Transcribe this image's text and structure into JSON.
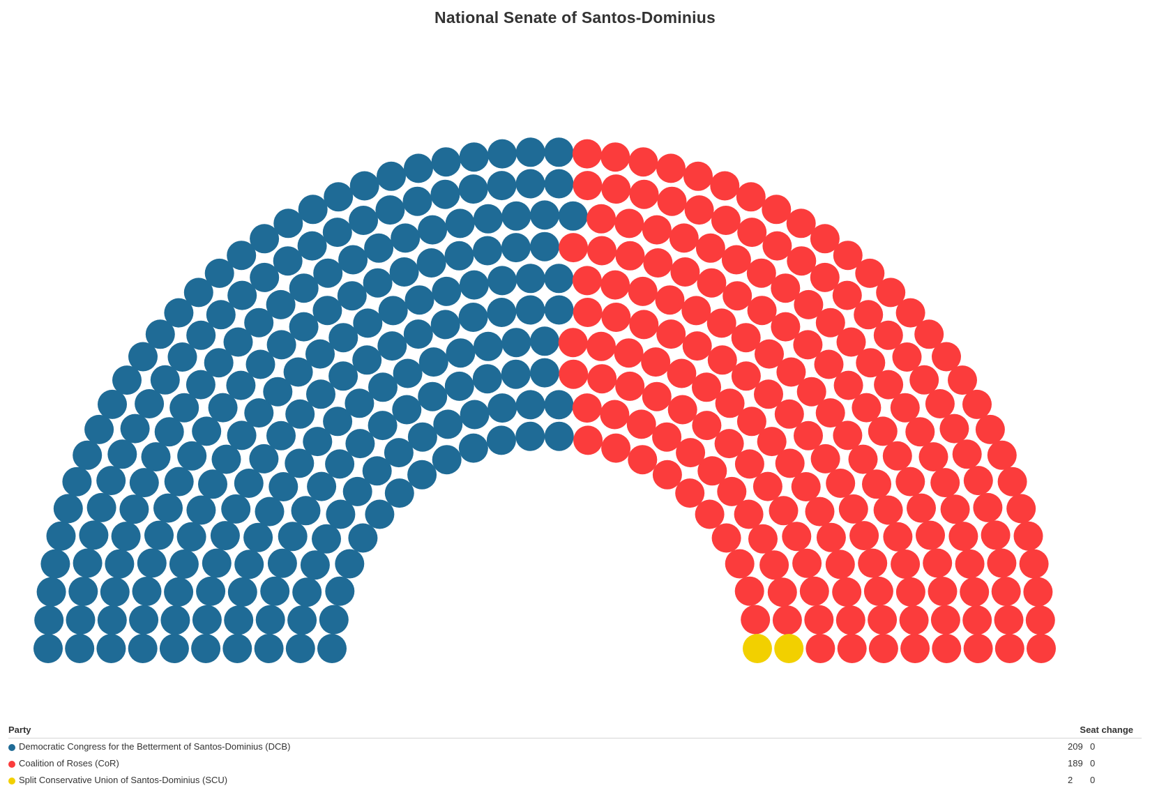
{
  "chart_data": {
    "type": "parliament",
    "title": "National Senate of Santos-Dominius",
    "total_seats": 400,
    "columns": [
      "Party",
      "Seat change"
    ],
    "parties": [
      {
        "name": "Democratic Congress for the Betterment of Santos-Dominius (DCB)",
        "seats": 209,
        "change": "0",
        "color": "#1f6b96"
      },
      {
        "name": "Coalition of Roses (CoR)",
        "seats": 189,
        "change": "0",
        "color": "#fb3c3c"
      },
      {
        "name": "Split Conservative Union of Santos-Dominius (SCU)",
        "seats": 2,
        "change": "0",
        "color": "#f2d000"
      }
    ]
  }
}
